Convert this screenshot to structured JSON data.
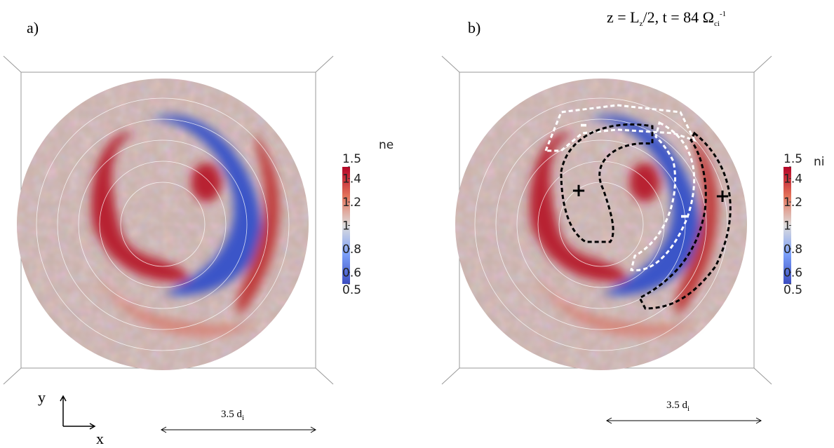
{
  "title": {
    "parts": [
      "z = L",
      "z",
      "/2, t = 84 Ω",
      "ci",
      "-1"
    ]
  },
  "panels": [
    {
      "label": "a)",
      "colorbar": {
        "title": "ne",
        "ticks": [
          1.5,
          1.4,
          1.2,
          1,
          0.8,
          0.6,
          0.5
        ]
      },
      "scale_bar": {
        "parts": [
          "3.5 d",
          "i"
        ]
      },
      "markers": []
    },
    {
      "label": "b)",
      "colorbar": {
        "title": "ni",
        "ticks": [
          1.5,
          1.4,
          1.2,
          1,
          0.8,
          0.6,
          0.5
        ]
      },
      "scale_bar": {
        "parts": [
          "3.5 d",
          "i"
        ]
      },
      "markers": [
        "-",
        "+",
        "-",
        "+"
      ]
    }
  ],
  "axes": {
    "y": "y",
    "x": "x"
  }
}
